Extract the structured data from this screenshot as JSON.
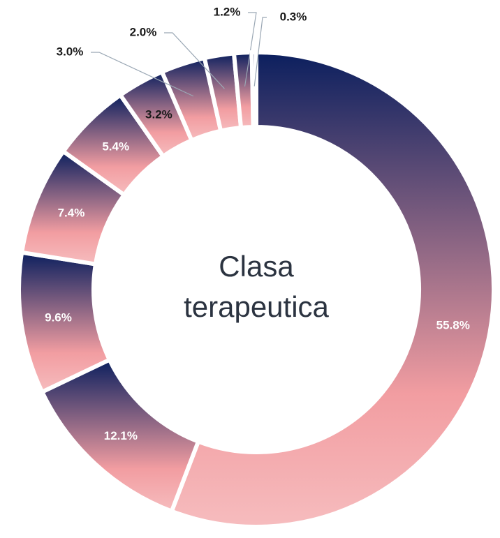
{
  "chart_data": {
    "type": "donut",
    "center_text": [
      "Clasa",
      "terapeutica"
    ],
    "values": [
      55.8,
      12.1,
      9.6,
      7.4,
      5.4,
      3.2,
      3.0,
      2.0,
      1.2,
      0.3
    ],
    "value_labels": [
      "55.8%",
      "12.1%",
      "9.6%",
      "7.4%",
      "5.4%",
      "3.2%",
      "3.0%",
      "2.0%",
      "1.2%",
      "0.3%"
    ],
    "gradient_colors": [
      "#0b1f5e",
      "#f29da1",
      "#f6bcbe"
    ]
  }
}
